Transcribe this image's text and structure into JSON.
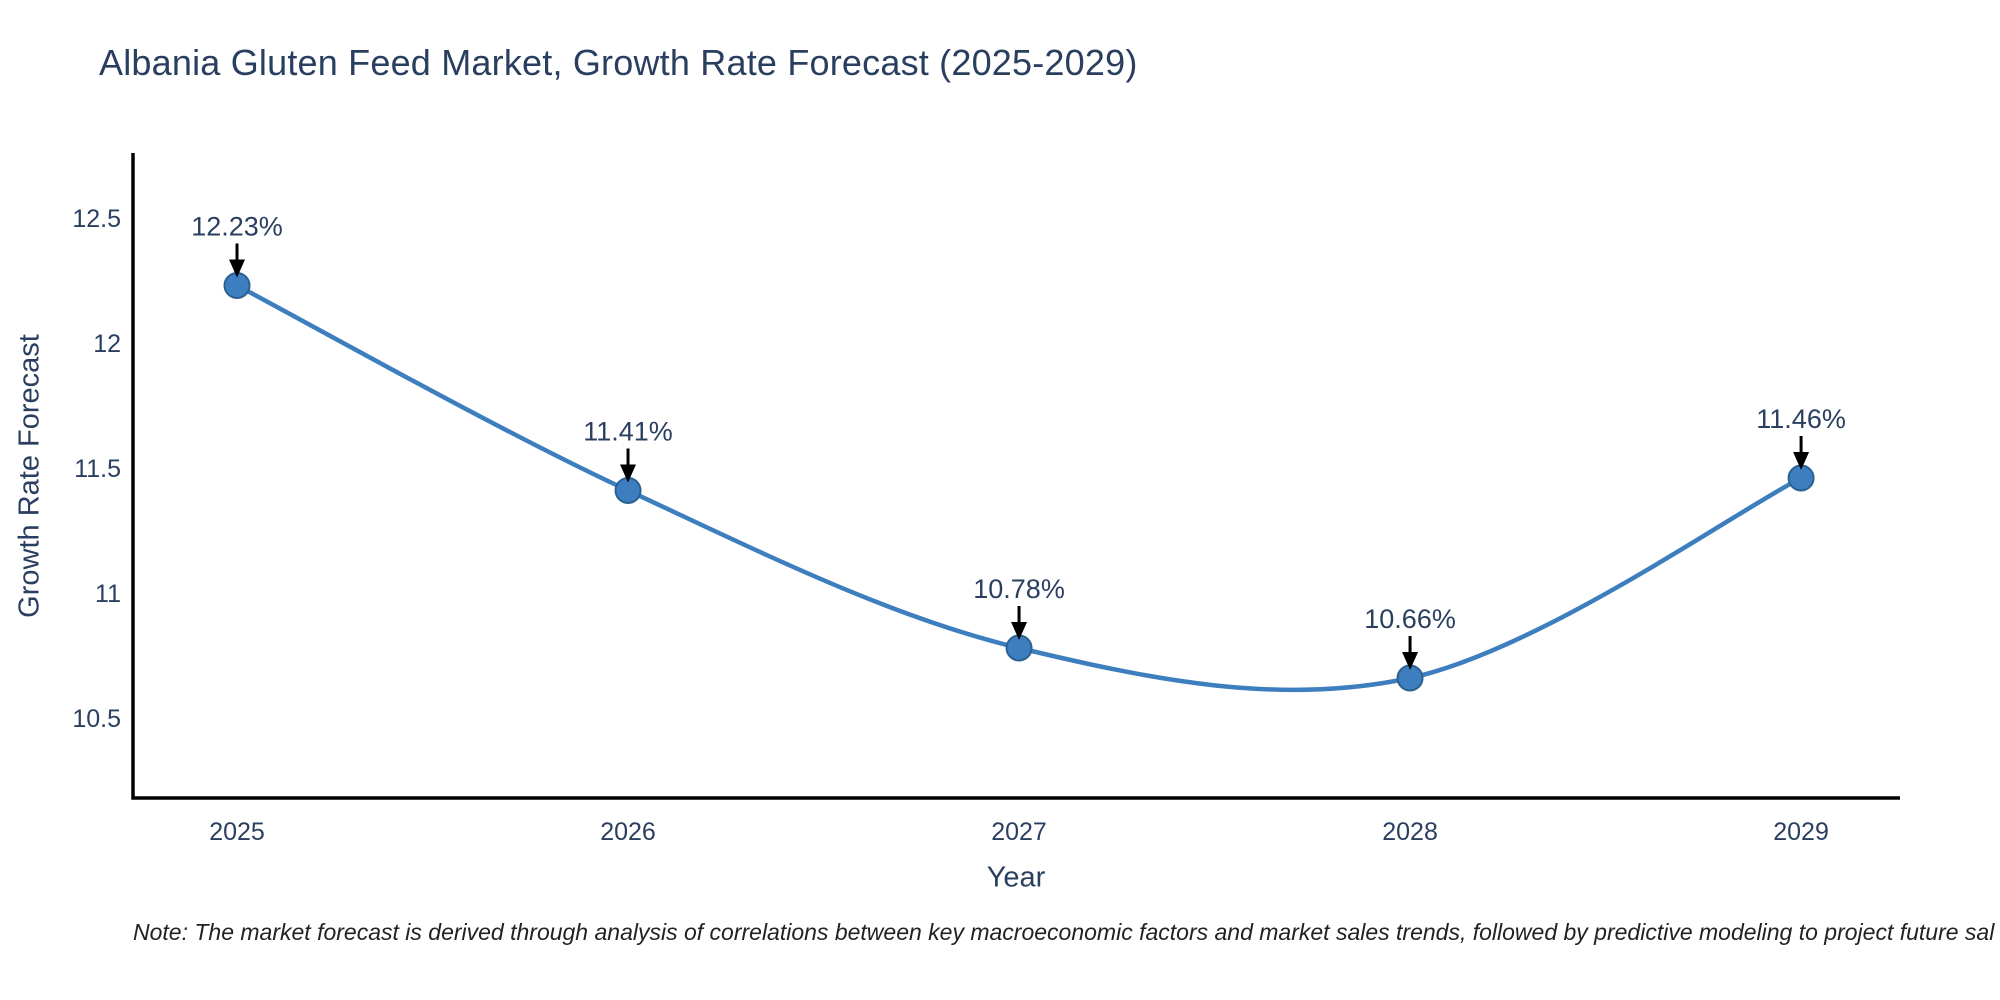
{
  "title": "Albania Gluten Feed Market, Growth Rate Forecast (2025-2029)",
  "note": "Note: The market forecast is derived through analysis of correlations between key macroeconomic factors and market sales trends, followed by predictive modeling to project future sal",
  "chart_data": {
    "type": "line",
    "title": "Albania Gluten Feed Market, Growth Rate Forecast (2025-2029)",
    "xlabel": "Year",
    "ylabel": "Growth Rate Forecast",
    "x": [
      2025,
      2026,
      2027,
      2028,
      2029
    ],
    "values": [
      12.23,
      11.41,
      10.78,
      10.66,
      11.46
    ],
    "point_labels": [
      "12.23%",
      "11.41%",
      "10.78%",
      "10.66%",
      "11.46%"
    ],
    "xtick_labels": [
      "2025",
      "2026",
      "2027",
      "2028",
      "2029"
    ],
    "yticks": [
      10.5,
      11,
      11.5,
      12,
      12.5
    ],
    "ytick_labels": [
      "10.5",
      "11",
      "11.5",
      "12",
      "12.5"
    ],
    "xlim": [
      2024.734,
      2029.253
    ],
    "ylim": [
      10.18,
      12.76
    ],
    "line_shape": "spline",
    "grid": false,
    "legend": "none",
    "colors": {
      "line": "#3d7ebf",
      "marker_fill": "#3c7ebf",
      "marker_edge": "#2b6191",
      "arrow": "#000000",
      "text": "#2a3f5f",
      "axis_line": "#000000"
    }
  }
}
